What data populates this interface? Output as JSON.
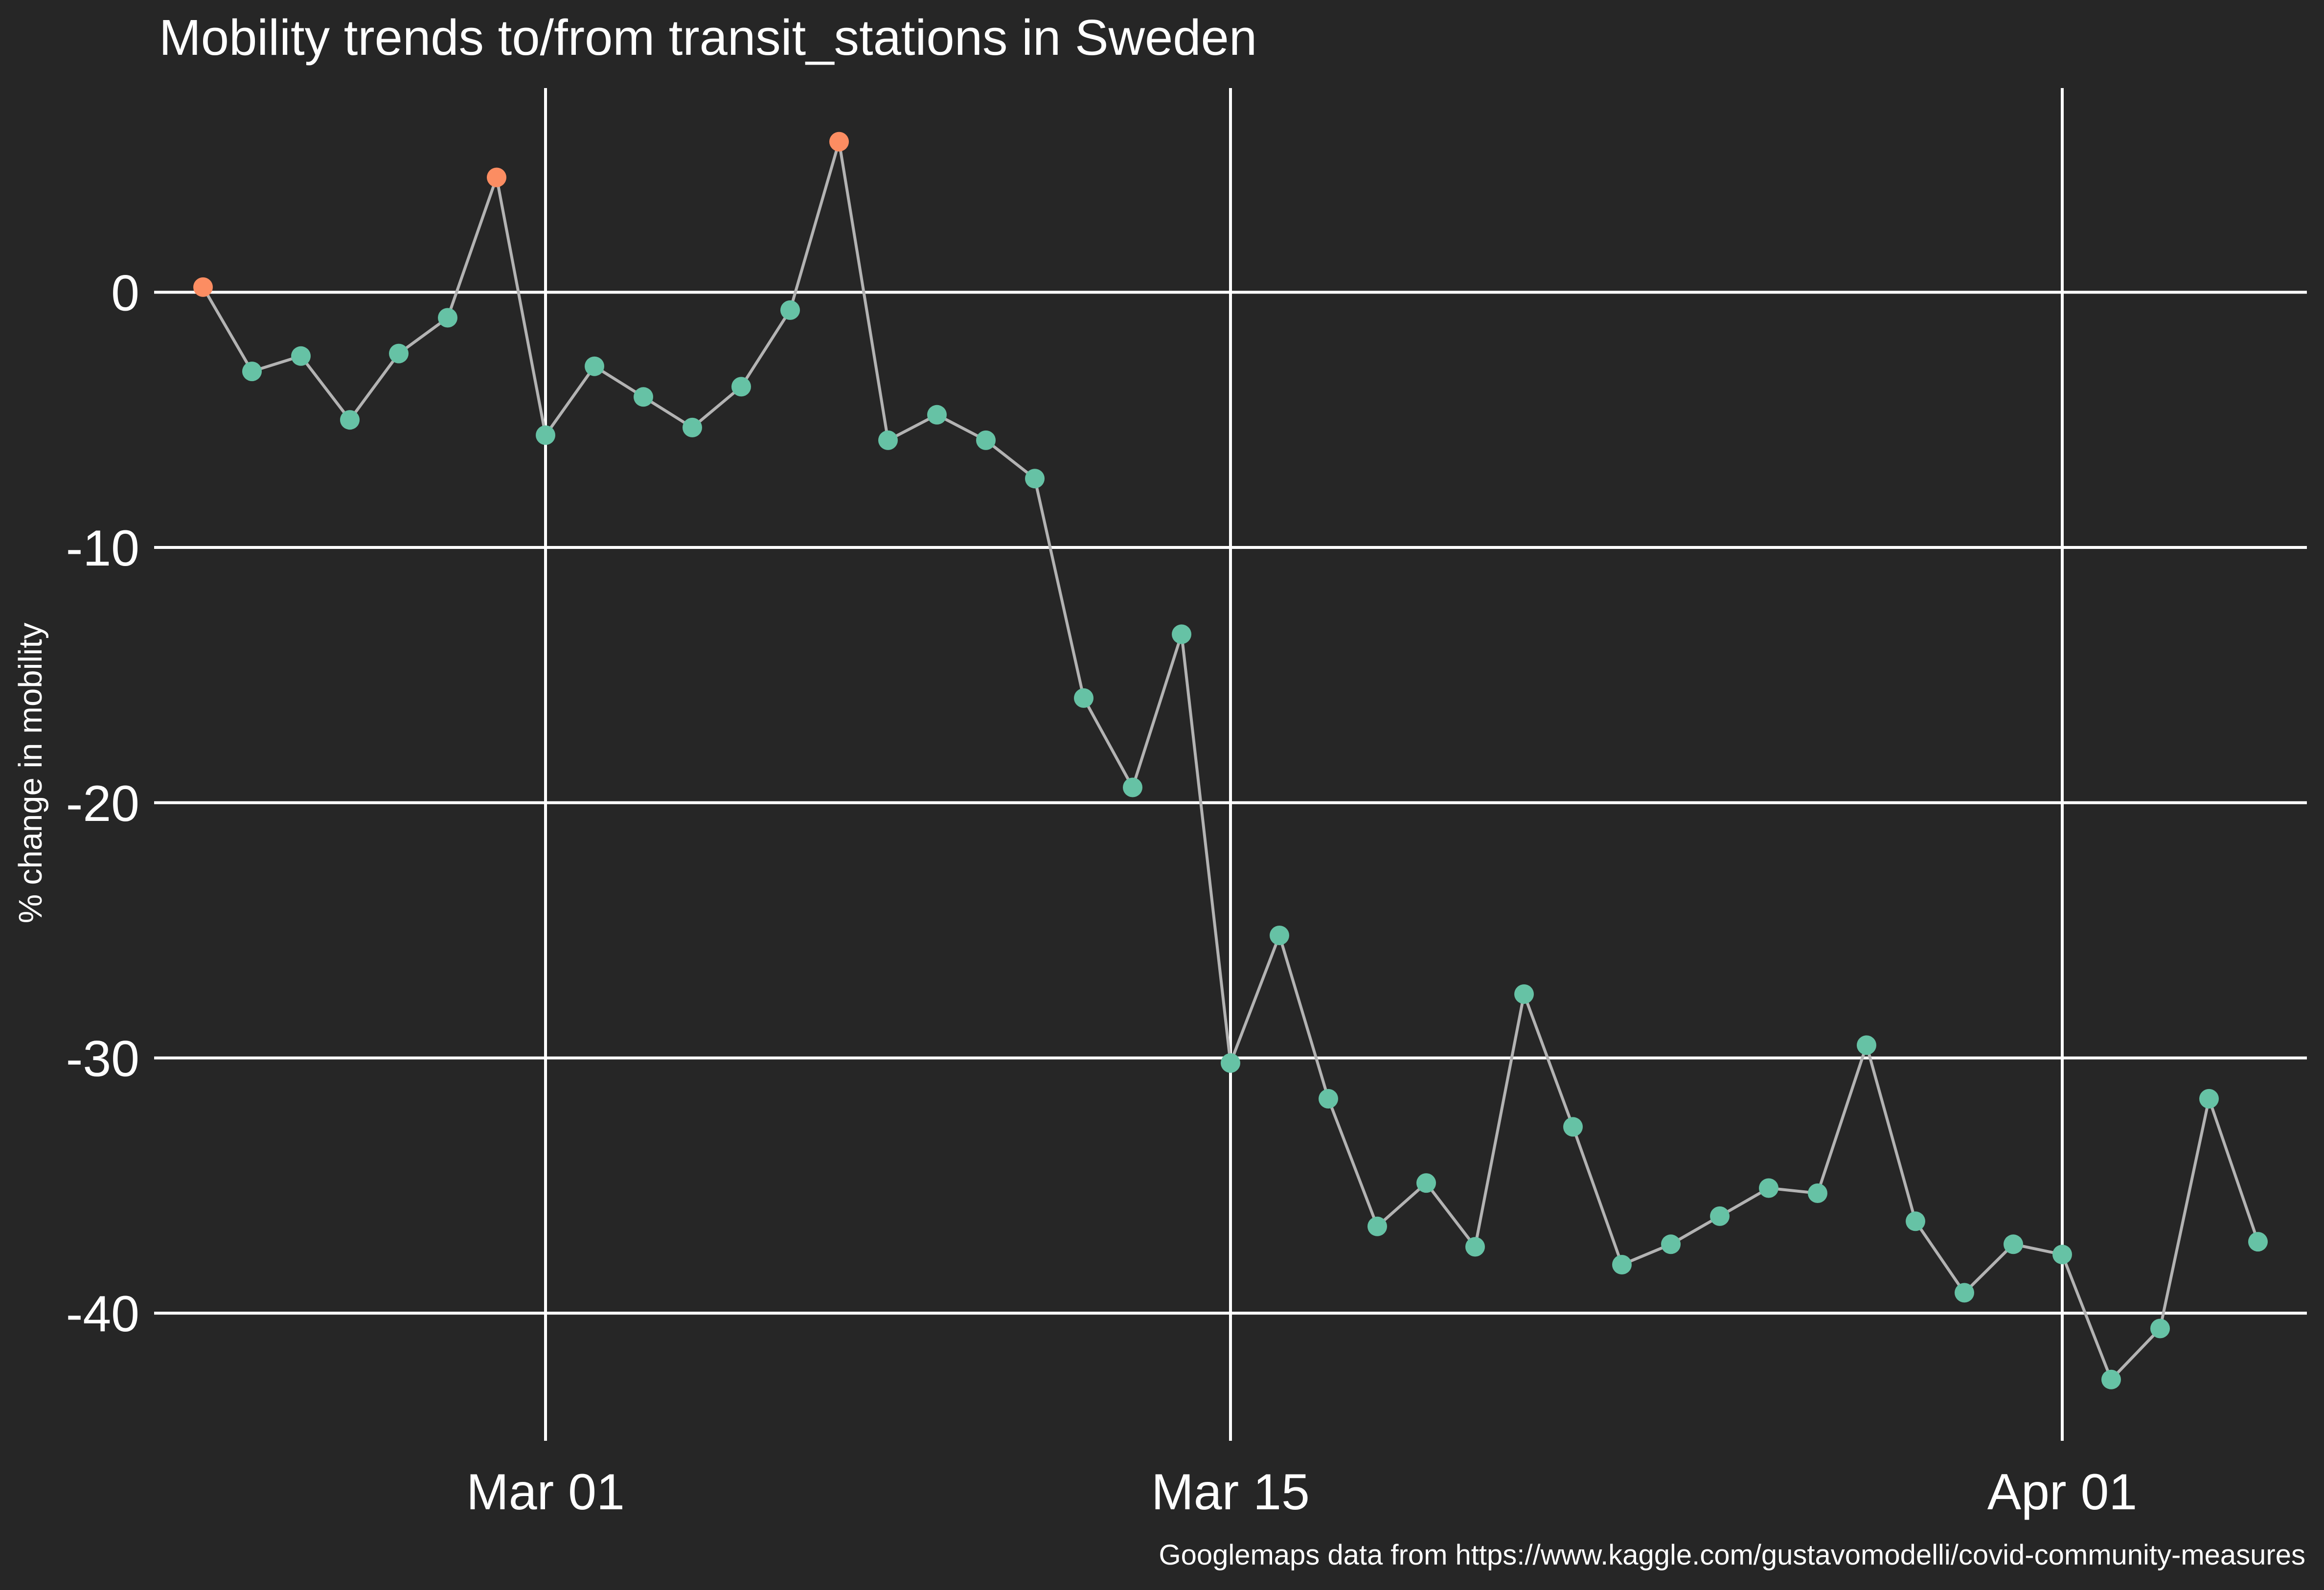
{
  "chart_data": {
    "type": "line",
    "title": "Mobility trends to/from transit_stations in Sweden",
    "xlabel": "",
    "ylabel": "% change in mobility",
    "caption": "Googlemaps data from https://www.kaggle.com/gustavomodelli/covid-community-measures",
    "x_ticks": [
      {
        "date": "2020-03-01",
        "label": "Mar 01"
      },
      {
        "date": "2020-03-15",
        "label": "Mar 15"
      },
      {
        "date": "2020-04-01",
        "label": "Apr 01"
      }
    ],
    "y_ticks": [
      0,
      -10,
      -20,
      -30,
      -40
    ],
    "xlim": [
      "2020-02-22",
      "2020-04-06"
    ],
    "ylim": [
      -45,
      8
    ],
    "grid": true,
    "legend": "none",
    "colors": {
      "background": "#262626",
      "grid": "#ffffff",
      "line": "#b3b3b3",
      "point_positive": "#fc8d62",
      "point_negative": "#66c2a5"
    },
    "series": [
      {
        "x": [
          "2020-02-23",
          "2020-02-24",
          "2020-02-25",
          "2020-02-26",
          "2020-02-27",
          "2020-02-28",
          "2020-02-29",
          "2020-03-01",
          "2020-03-02",
          "2020-03-03",
          "2020-03-04",
          "2020-03-05",
          "2020-03-06",
          "2020-03-07",
          "2020-03-08",
          "2020-03-09",
          "2020-03-10",
          "2020-03-11",
          "2020-03-12",
          "2020-03-13",
          "2020-03-14",
          "2020-03-15",
          "2020-03-16",
          "2020-03-17",
          "2020-03-18",
          "2020-03-19",
          "2020-03-20",
          "2020-03-21",
          "2020-03-22",
          "2020-03-23",
          "2020-03-24",
          "2020-03-25",
          "2020-03-26",
          "2020-03-27",
          "2020-03-28",
          "2020-03-29",
          "2020-03-30",
          "2020-03-31",
          "2020-04-01",
          "2020-04-02",
          "2020-04-03",
          "2020-04-04",
          "2020-04-05"
        ],
        "values": [
          0.2,
          -3.1,
          -2.5,
          -5.0,
          -2.4,
          -1.0,
          4.5,
          -5.6,
          -2.9,
          -4.1,
          -5.3,
          -3.7,
          -0.7,
          5.9,
          -5.8,
          -4.8,
          -5.8,
          -7.3,
          -15.9,
          -19.4,
          -13.4,
          -30.2,
          -25.2,
          -31.6,
          -36.6,
          -34.9,
          -37.4,
          -27.5,
          -32.7,
          -38.1,
          -37.3,
          -36.2,
          -35.1,
          -35.3,
          -29.5,
          -36.4,
          -39.2,
          -37.3,
          -37.7,
          -42.6,
          -40.6,
          -31.6,
          -37.2
        ]
      }
    ]
  }
}
